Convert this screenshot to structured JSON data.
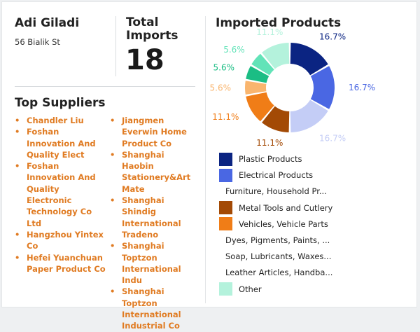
{
  "customer": {
    "name": "Adi Giladi",
    "address": "56 Bialik St"
  },
  "total_imports": {
    "label_line1": "Total",
    "label_line2": "Imports",
    "value": "18"
  },
  "top_suppliers": {
    "title": "Top Suppliers",
    "column_1": [
      "Chandler Liu",
      "Foshan Innovation And Quality Elect",
      "Foshan Innovation And Quality Electronic Technology Co Ltd",
      "Hangzhou Yintex Co",
      "Hefei Yuanchuan Paper Product Co"
    ],
    "column_2": [
      "Jiangmen Everwin Home Product Co",
      "Shanghai Haobin Stationery&Art Mate",
      "Shanghai Shindig International Tradeno",
      "Shanghai Toptzon International Indu",
      "Shanghai Toptzon International Industrial Co"
    ]
  },
  "chart_data": {
    "type": "pie",
    "title": "Imported Products",
    "donut": true,
    "categories": [
      "Plastic Products",
      "Electrical Products",
      "Furniture, Household Pr...",
      "Metal Tools and Cutlery",
      "Vehicles, Vehicle Parts",
      "Dyes, Pigments, Paints, ...",
      "Soap, Lubricants, Waxes...",
      "Leather Articles, Handba...",
      "Other"
    ],
    "values": [
      16.7,
      16.7,
      16.7,
      11.1,
      11.1,
      5.6,
      5.6,
      5.6,
      11.1
    ],
    "labels": [
      "16.7%",
      "16.7%",
      "16.7%",
      "11.1%",
      "11.1%",
      "5.6%",
      "5.6%",
      "5.6%",
      "11.1%"
    ],
    "colors": [
      "#0b2482",
      "#4a67e3",
      "#c4cdf6",
      "#a34a05",
      "#f07d17",
      "#f9b56e",
      "#1bbd84",
      "#62e3b8",
      "#b4f2dc"
    ],
    "legend_swatch_shown": [
      true,
      true,
      false,
      true,
      true,
      false,
      false,
      false,
      true
    ],
    "legend_position": "bottom"
  }
}
